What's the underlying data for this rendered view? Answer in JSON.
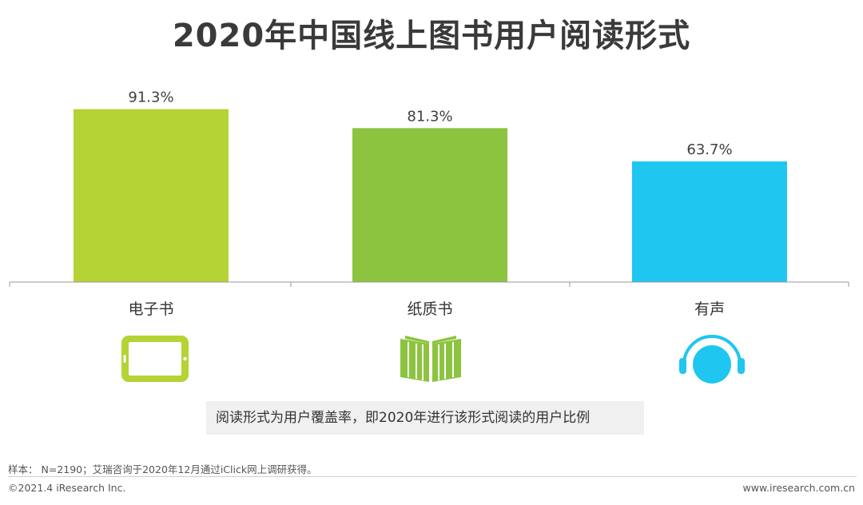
{
  "chart_data": {
    "type": "bar",
    "title": "2020年中国线上图书用户阅读形式",
    "categories": [
      "电子书",
      "纸质书",
      "有声"
    ],
    "values": [
      91.3,
      81.3,
      63.7
    ],
    "value_labels": [
      "91.3%",
      "81.3%",
      "63.7%"
    ],
    "colors": [
      "#b5d334",
      "#8cc43f",
      "#1fc6f0"
    ],
    "icons": [
      "tablet-icon",
      "open-book-icon",
      "headphones-icon"
    ],
    "ylim": [
      0,
      100
    ],
    "xlabel": "",
    "ylabel": "",
    "grid": false,
    "legend": "none"
  },
  "note": "阅读形式为用户覆盖率，即2020年进行该形式阅读的用户比例",
  "footer": {
    "source": "样本： N=2190；艾瑞咨询于2020年12月通过iClick网上调研获得。",
    "copyright": "©2021.4 iResearch Inc.",
    "website": "www.iresearch.com.cn"
  }
}
